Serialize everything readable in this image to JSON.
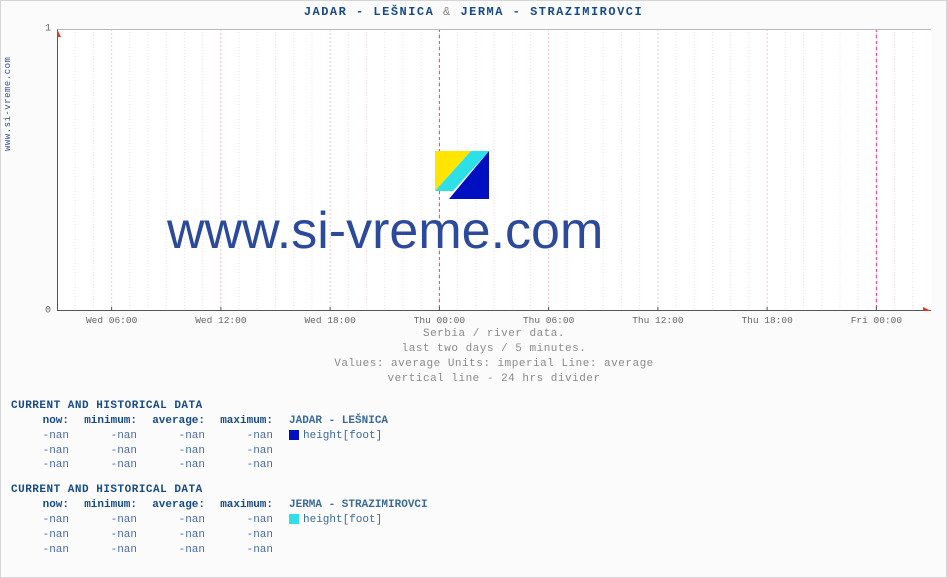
{
  "side_label": "www.si-vreme.com",
  "title": {
    "left": "JADAR -  LEŠNICA",
    "amp": "&",
    "right": "JERMA -  STRAZIMIROVCI"
  },
  "chart": {
    "type": "line",
    "background_color": "#ffffff",
    "grid_color_major": "#f3c5cd",
    "grid_color_minor": "#f6dde1",
    "divider_color": "#e63aa3",
    "axis_color": "#555555",
    "arrow_color": "#e03020",
    "ylim": [
      0,
      1
    ],
    "yticks": [
      0,
      1
    ],
    "xticks": [
      {
        "pos": 0.0625,
        "label": "Wed 06:00"
      },
      {
        "pos": 0.1875,
        "label": "Wed 12:00"
      },
      {
        "pos": 0.3125,
        "label": "Wed 18:00"
      },
      {
        "pos": 0.4375,
        "label": "Thu 00:00"
      },
      {
        "pos": 0.5625,
        "label": "Thu 06:00"
      },
      {
        "pos": 0.6875,
        "label": "Thu 12:00"
      },
      {
        "pos": 0.8125,
        "label": "Thu 18:00"
      },
      {
        "pos": 0.9375,
        "label": "Fri 00:00"
      }
    ],
    "divider_positions": [
      0.4375,
      0.9375
    ],
    "minor_x_count": 48,
    "watermark_text": "www.si-vreme.com",
    "watermark_color": "#2b4a9b",
    "logo_colors": {
      "yellow": "#ffe500",
      "blue": "#0010c0",
      "cyan": "#2de0e8"
    }
  },
  "caption": {
    "line1": "Serbia / river data.",
    "line2": "last two days / 5 minutes.",
    "line3": "Values: average  Units: imperial  Line: average",
    "line4": "vertical line - 24 hrs  divider"
  },
  "blocks": [
    {
      "title": "CURRENT AND HISTORICAL DATA",
      "headers": [
        "now:",
        "minimum:",
        "average:",
        "maximum:"
      ],
      "series_label": "JADAR -  LEŠNICA",
      "series_swatch": "#0010c0",
      "series_metric": "height[foot]",
      "rows": [
        [
          "-nan",
          "-nan",
          "-nan",
          "-nan"
        ],
        [
          "-nan",
          "-nan",
          "-nan",
          "-nan"
        ],
        [
          "-nan",
          "-nan",
          "-nan",
          "-nan"
        ]
      ]
    },
    {
      "title": "CURRENT AND HISTORICAL DATA",
      "headers": [
        "now:",
        "minimum:",
        "average:",
        "maximum:"
      ],
      "series_label": "JERMA -  STRAZIMIROVCI",
      "series_swatch": "#2de0e8",
      "series_metric": "height[foot]",
      "rows": [
        [
          "-nan",
          "-nan",
          "-nan",
          "-nan"
        ],
        [
          "-nan",
          "-nan",
          "-nan",
          "-nan"
        ],
        [
          "-nan",
          "-nan",
          "-nan",
          "-nan"
        ]
      ]
    }
  ]
}
